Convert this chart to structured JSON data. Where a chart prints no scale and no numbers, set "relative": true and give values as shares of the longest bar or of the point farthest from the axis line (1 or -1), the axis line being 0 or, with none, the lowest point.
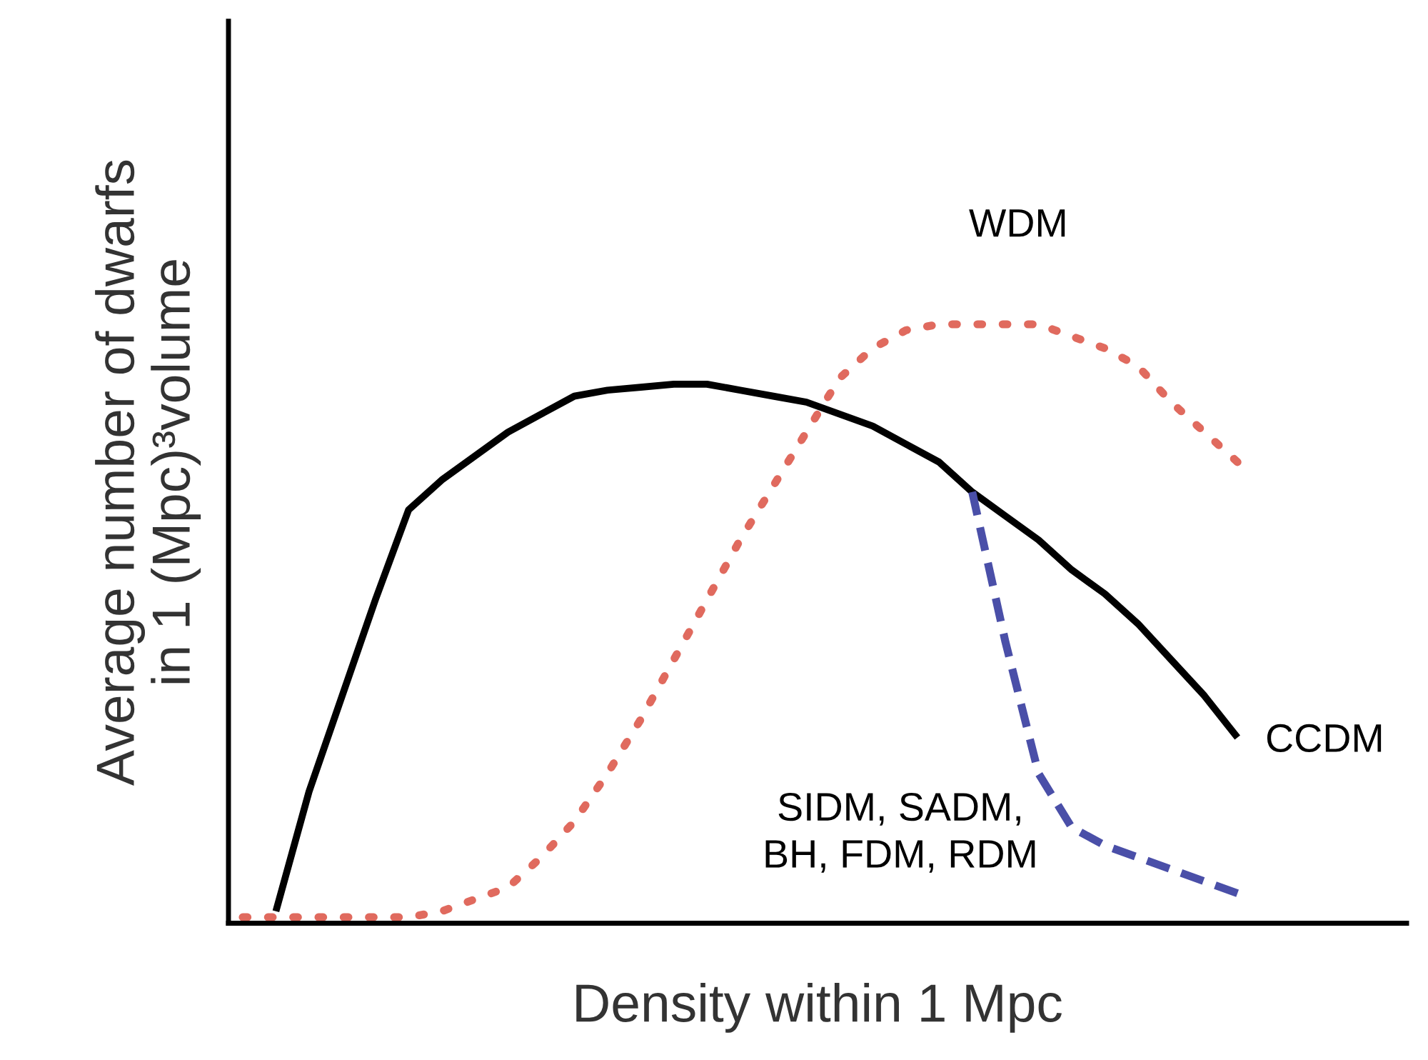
{
  "chart_data": {
    "type": "line",
    "relative": true,
    "xlabel": "Density within 1 Mpc",
    "ylabel": "Average number of dwarfs\nin 1 (Mpc)³volume",
    "legend": false,
    "marker": "none",
    "categories": [
      null,
      null,
      null,
      null,
      null,
      null,
      null,
      null,
      null,
      null,
      null,
      null,
      null,
      null,
      null,
      null,
      null,
      null,
      null,
      null,
      null,
      null,
      null,
      null,
      null,
      null,
      null,
      null,
      null,
      null,
      null
    ],
    "series": [
      {
        "name": "CCDM",
        "color": "#000000",
        "line_style": "solid",
        "values": [
          null,
          0.02,
          0.22,
          0.38,
          0.54,
          0.69,
          0.74,
          0.78,
          0.82,
          0.85,
          0.88,
          0.89,
          0.895,
          0.9,
          0.9,
          0.89,
          0.88,
          0.87,
          0.85,
          0.83,
          0.8,
          0.77,
          0.72,
          0.68,
          0.64,
          0.59,
          0.55,
          0.5,
          0.44,
          0.38,
          0.31
        ]
      },
      {
        "name": "WDM",
        "color": "#e06a5e",
        "line_style": "dotted",
        "values": [
          0.01,
          0.01,
          0.01,
          0.01,
          0.01,
          0.01,
          0.02,
          0.04,
          0.06,
          0.11,
          0.17,
          0.25,
          0.34,
          0.44,
          0.54,
          0.64,
          0.73,
          0.82,
          0.91,
          0.96,
          0.99,
          1.0,
          1.0,
          1.0,
          1.0,
          0.98,
          0.96,
          0.93,
          0.87,
          0.82,
          0.77
        ]
      },
      {
        "name": "SIDM, SADM,\nBH, FDM, RDM",
        "color": "#4a4fa8",
        "line_style": "dashed",
        "values": [
          null,
          null,
          null,
          null,
          null,
          null,
          null,
          null,
          null,
          null,
          null,
          null,
          null,
          null,
          null,
          null,
          null,
          null,
          null,
          null,
          null,
          null,
          0.72,
          0.47,
          0.25,
          0.16,
          0.13,
          0.11,
          0.09,
          0.07,
          0.05
        ]
      }
    ]
  }
}
